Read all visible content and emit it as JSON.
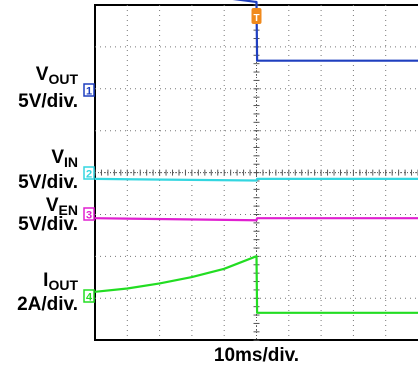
{
  "chart_data": {
    "type": "line",
    "xlabel": "10ms/div.",
    "trigger_marker": "T",
    "channels": [
      {
        "id": "vout",
        "marker": "1",
        "color": "#1f3fbf",
        "name_main": "V",
        "name_sub": "OUT",
        "scale": "5V/div."
      },
      {
        "id": "vin",
        "marker": "2",
        "color": "#33d6e0",
        "name_main": "V",
        "name_sub": "IN",
        "scale": "5V/div."
      },
      {
        "id": "ven",
        "marker": "3",
        "color": "#e020d0",
        "name_main": "V",
        "name_sub": "EN",
        "scale": "5V/div."
      },
      {
        "id": "iout",
        "marker": "4",
        "color": "#22dd22",
        "name_main": "I",
        "name_sub": "OUT",
        "scale": "2A/div."
      }
    ],
    "series": [
      {
        "channel": "vout",
        "x": [
          0,
          3.5,
          5.0,
          5.02,
          10
        ],
        "y": [
          2.4,
          2.25,
          2.1,
          0.7,
          0.7
        ]
      },
      {
        "channel": "vin",
        "x": [
          0,
          5.0,
          5.02,
          10
        ],
        "y": [
          -0.14,
          -0.18,
          -0.14,
          -0.14
        ]
      },
      {
        "channel": "ven",
        "x": [
          0,
          5.0,
          5.02,
          10
        ],
        "y": [
          -0.1,
          -0.15,
          -0.1,
          -0.1
        ]
      },
      {
        "channel": "iout",
        "x": [
          0,
          1,
          2,
          3,
          4,
          5,
          5.02,
          10
        ],
        "y": [
          0.1,
          0.18,
          0.3,
          0.45,
          0.65,
          0.95,
          -0.4,
          -0.4
        ]
      }
    ],
    "xlim": [
      0,
      10
    ],
    "grid": true
  }
}
